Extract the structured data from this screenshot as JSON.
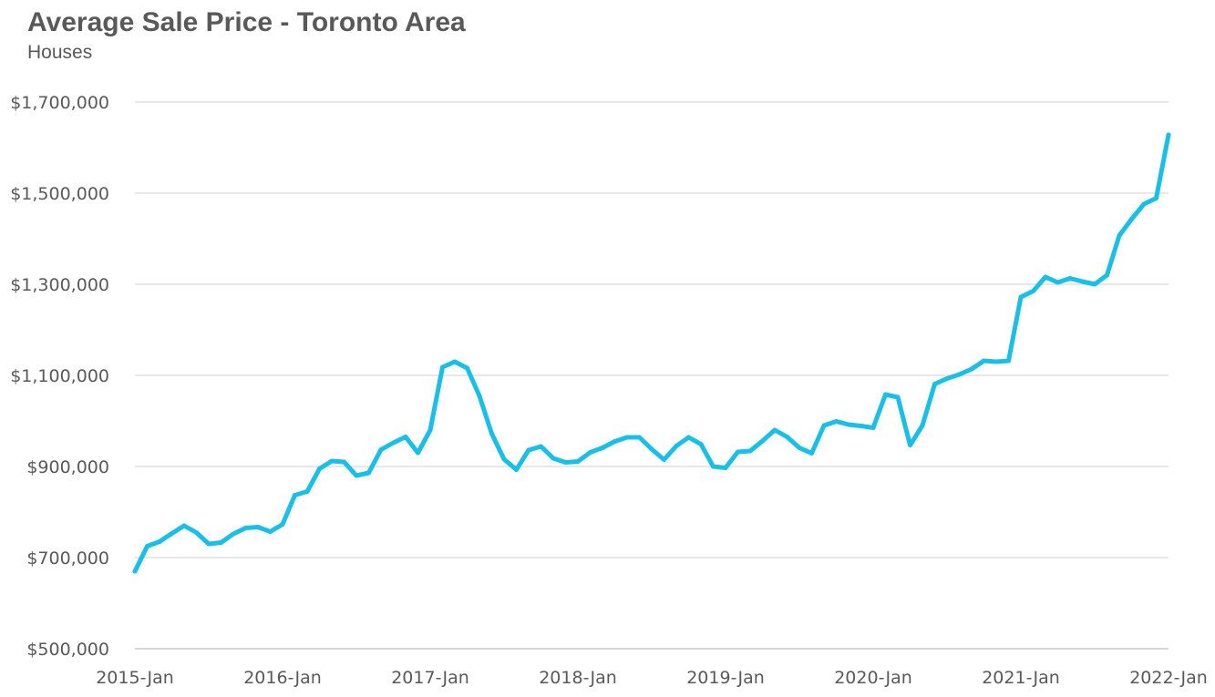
{
  "chart_data": {
    "type": "line",
    "title": "Average Sale Price - Toronto Area",
    "subtitle": "Houses",
    "xlabel": "",
    "ylabel": "",
    "ylim": [
      500000,
      1700000
    ],
    "y_ticks": [
      500000,
      700000,
      900000,
      1100000,
      1300000,
      1500000,
      1700000
    ],
    "y_tick_labels": [
      "$500,000",
      "$700,000",
      "$900,000",
      "$1,100,000",
      "$1,300,000",
      "$1,500,000",
      "$1,700,000"
    ],
    "x_tick_labels": [
      "2015-Jan",
      "2016-Jan",
      "2017-Jan",
      "2018-Jan",
      "2019-Jan",
      "2020-Jan",
      "2021-Jan",
      "2022-Jan"
    ],
    "grid": true,
    "legend": "none",
    "line_color": "#1ABFE8",
    "series": [
      {
        "values": [
          670000,
          725000,
          735000,
          753000,
          770000,
          755000,
          730000,
          733000,
          752000,
          765000,
          767000,
          757000,
          773000,
          837000,
          845000,
          895000,
          912000,
          910000,
          880000,
          886000,
          937000,
          952000,
          965000,
          930000,
          980000,
          1118000,
          1130000,
          1116000,
          1055000,
          972000,
          916000,
          893000,
          936000,
          944000,
          918000,
          909000,
          911000,
          931000,
          941000,
          955000,
          964000,
          964000,
          938000,
          915000,
          945000,
          964000,
          949000,
          900000,
          897000,
          932000,
          934000,
          956000,
          980000,
          965000,
          941000,
          929000,
          990000,
          999000,
          992000,
          989000,
          985000,
          1058000,
          1052000,
          947000,
          990000,
          1081000,
          1093000,
          1102000,
          1114000,
          1132000,
          1130000,
          1132000,
          1272000,
          1285000,
          1316000,
          1304000,
          1313000,
          1306000,
          1300000,
          1320000,
          1407000,
          1443000,
          1476000,
          1489000,
          1628000
        ]
      }
    ]
  }
}
